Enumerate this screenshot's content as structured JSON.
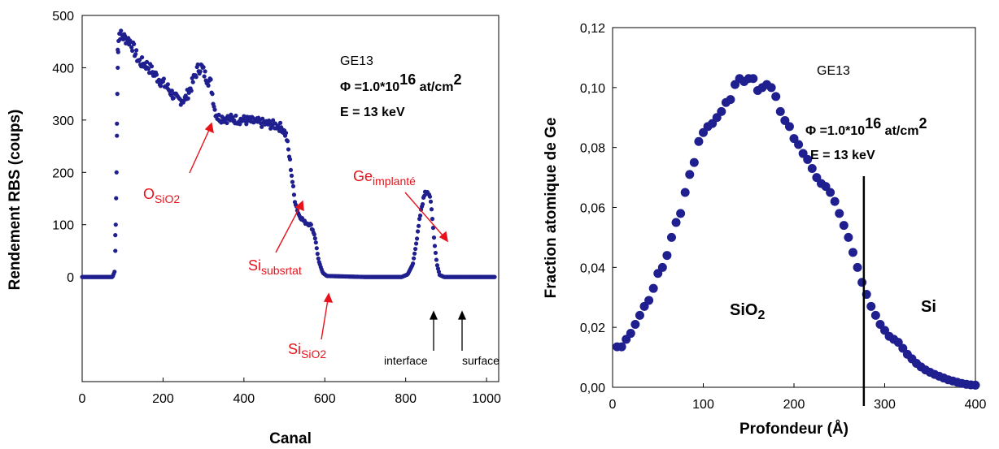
{
  "chart_data": [
    {
      "type": "scatter",
      "sample": "GE13",
      "fluence_prefix": "Φ =1.0*10",
      "fluence_exp": "16",
      "fluence_unit": " at/cm",
      "fluence_unit_exp": "2",
      "energy": "E = 13 keV",
      "xlabel": "Canal",
      "ylabel": "Rendement RBS (coups)",
      "xlim": [
        0,
        1030
      ],
      "ylim": [
        -200,
        500
      ],
      "xticks": [
        "0",
        "200",
        "400",
        "600",
        "800",
        "1000"
      ],
      "yticks": [
        "0",
        "100",
        "200",
        "300",
        "400",
        "500"
      ],
      "marker_color": "#1f1f8f",
      "curve": [
        [
          0,
          0
        ],
        [
          60,
          0
        ],
        [
          75,
          0
        ],
        [
          80,
          10
        ],
        [
          84,
          150
        ],
        [
          86,
          300
        ],
        [
          88,
          440
        ],
        [
          92,
          465
        ],
        [
          100,
          460
        ],
        [
          120,
          450
        ],
        [
          140,
          412
        ],
        [
          160,
          405
        ],
        [
          190,
          378
        ],
        [
          210,
          363
        ],
        [
          235,
          338
        ],
        [
          255,
          340
        ],
        [
          270,
          365
        ],
        [
          285,
          397
        ],
        [
          295,
          402
        ],
        [
          305,
          384
        ],
        [
          318,
          370
        ],
        [
          328,
          320
        ],
        [
          335,
          305
        ],
        [
          360,
          303
        ],
        [
          400,
          300
        ],
        [
          440,
          295
        ],
        [
          480,
          290
        ],
        [
          495,
          285
        ],
        [
          505,
          270
        ],
        [
          515,
          215
        ],
        [
          525,
          150
        ],
        [
          535,
          120
        ],
        [
          550,
          105
        ],
        [
          565,
          100
        ],
        [
          575,
          80
        ],
        [
          585,
          30
        ],
        [
          595,
          8
        ],
        [
          605,
          2
        ],
        [
          700,
          0
        ],
        [
          790,
          0
        ],
        [
          805,
          5
        ],
        [
          818,
          25
        ],
        [
          828,
          75
        ],
        [
          838,
          130
        ],
        [
          848,
          160
        ],
        [
          856,
          162
        ],
        [
          863,
          140
        ],
        [
          870,
          75
        ],
        [
          877,
          25
        ],
        [
          884,
          4
        ],
        [
          895,
          0
        ],
        [
          1020,
          0
        ]
      ],
      "annotations": {
        "o": {
          "base": "O",
          "sub": "SiO2"
        },
        "si_sub": {
          "base": "Si",
          "sub": "subsrtat"
        },
        "si_sio2": {
          "base": "Si",
          "sub": "SiO2"
        },
        "ge": {
          "base": "Ge",
          "sub": "implanté"
        },
        "interface": "interface",
        "surface": "surface"
      }
    },
    {
      "type": "scatter",
      "sample": "GE13",
      "fluence_prefix": "Φ =1.0*10",
      "fluence_exp": "16",
      "fluence_unit": " at/cm",
      "fluence_unit_exp": "2",
      "energy": "E = 13 keV",
      "xlabel": "Profondeur (Å)",
      "ylabel": "Fraction atomique de Ge",
      "xlim": [
        0,
        400
      ],
      "ylim": [
        0,
        0.12
      ],
      "xticks": [
        "0",
        "100",
        "200",
        "300",
        "400"
      ],
      "yticks": [
        "0,00",
        "0,02",
        "0,04",
        "0,06",
        "0,08",
        "0,10",
        "0,12"
      ],
      "marker_color": "#1f1f8f",
      "points": [
        [
          5,
          0.0135
        ],
        [
          10,
          0.0135
        ],
        [
          15,
          0.016
        ],
        [
          20,
          0.018
        ],
        [
          25,
          0.021
        ],
        [
          30,
          0.024
        ],
        [
          35,
          0.027
        ],
        [
          40,
          0.029
        ],
        [
          45,
          0.033
        ],
        [
          50,
          0.038
        ],
        [
          55,
          0.04
        ],
        [
          60,
          0.044
        ],
        [
          65,
          0.05
        ],
        [
          70,
          0.055
        ],
        [
          75,
          0.058
        ],
        [
          80,
          0.065
        ],
        [
          85,
          0.071
        ],
        [
          90,
          0.075
        ],
        [
          95,
          0.082
        ],
        [
          100,
          0.085
        ],
        [
          105,
          0.087
        ],
        [
          110,
          0.088
        ],
        [
          115,
          0.09
        ],
        [
          120,
          0.092
        ],
        [
          125,
          0.095
        ],
        [
          130,
          0.096
        ],
        [
          135,
          0.101
        ],
        [
          140,
          0.103
        ],
        [
          145,
          0.102
        ],
        [
          150,
          0.103
        ],
        [
          155,
          0.103
        ],
        [
          160,
          0.099
        ],
        [
          165,
          0.1
        ],
        [
          170,
          0.101
        ],
        [
          175,
          0.1
        ],
        [
          180,
          0.097
        ],
        [
          185,
          0.092
        ],
        [
          190,
          0.089
        ],
        [
          195,
          0.087
        ],
        [
          200,
          0.083
        ],
        [
          205,
          0.081
        ],
        [
          210,
          0.078
        ],
        [
          215,
          0.076
        ],
        [
          220,
          0.073
        ],
        [
          225,
          0.07
        ],
        [
          230,
          0.068
        ],
        [
          235,
          0.067
        ],
        [
          240,
          0.065
        ],
        [
          245,
          0.062
        ],
        [
          250,
          0.058
        ],
        [
          255,
          0.054
        ],
        [
          260,
          0.05
        ],
        [
          265,
          0.045
        ],
        [
          270,
          0.04
        ],
        [
          275,
          0.035
        ],
        [
          280,
          0.031
        ],
        [
          285,
          0.027
        ],
        [
          290,
          0.024
        ],
        [
          295,
          0.021
        ],
        [
          300,
          0.019
        ],
        [
          305,
          0.017
        ],
        [
          310,
          0.016
        ],
        [
          315,
          0.015
        ],
        [
          320,
          0.013
        ],
        [
          325,
          0.011
        ],
        [
          330,
          0.0095
        ],
        [
          335,
          0.008
        ],
        [
          340,
          0.0068
        ],
        [
          345,
          0.0058
        ],
        [
          350,
          0.005
        ],
        [
          355,
          0.0043
        ],
        [
          360,
          0.0037
        ],
        [
          365,
          0.0031
        ],
        [
          370,
          0.0025
        ],
        [
          375,
          0.0021
        ],
        [
          380,
          0.0017
        ],
        [
          385,
          0.0013
        ],
        [
          390,
          0.001
        ],
        [
          395,
          0.0008
        ],
        [
          400,
          0.0007
        ]
      ],
      "interface_line_x": 277,
      "regions": {
        "sio2_base": "SiO",
        "sio2_sub": "2",
        "si": "Si"
      }
    }
  ]
}
